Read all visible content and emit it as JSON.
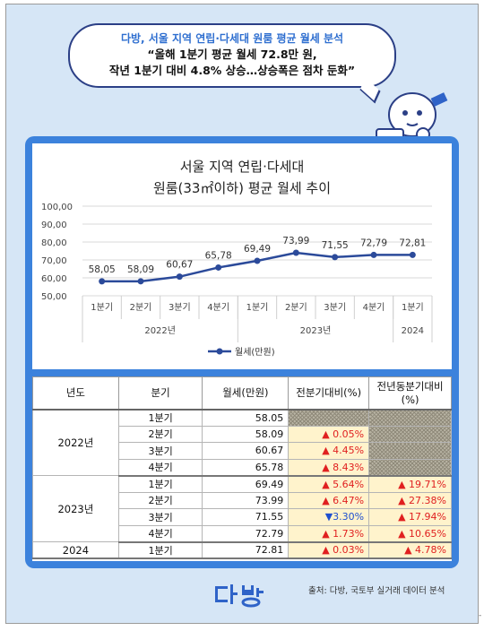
{
  "header": {
    "line1": "다방, 서울 지역 연립·다세대 원룸 평균 월세 분석",
    "line2": "“올해 1분기 평균 월세 72.8만 원,",
    "line3": "작년 1분기 대비 4.8% 상승…상승폭은 점차 둔화”"
  },
  "colors": {
    "accent": "#3c82dc",
    "line": "#2b4a9a",
    "highlight": "#fff3cc",
    "up": "#e02020",
    "down": "#1f4fcf"
  },
  "chart_data": {
    "type": "line",
    "title_line1": "서울 지역 연립·다세대",
    "title_line2": "원룸(33㎡이하) 평균 월세 추이",
    "categories": [
      "1분기",
      "2분기",
      "3분기",
      "4분기",
      "1분기",
      "2분기",
      "3분기",
      "4분기",
      "1분기"
    ],
    "groups": [
      {
        "label": "2022년",
        "count": 4
      },
      {
        "label": "2023년",
        "count": 4
      },
      {
        "label": "2024",
        "count": 1
      }
    ],
    "series": [
      {
        "name": "월세(만원)",
        "values": [
          58.05,
          58.09,
          60.67,
          65.78,
          69.49,
          73.99,
          71.55,
          72.79,
          72.81
        ]
      }
    ],
    "data_labels": [
      "58,05",
      "58,09",
      "60,67",
      "65,78",
      "69,49",
      "73,99",
      "71,55",
      "72,79",
      "72,81"
    ],
    "yticks": [
      "100,00",
      "90,00",
      "80,00",
      "70,00",
      "60,00",
      "50,00"
    ],
    "ylim": [
      50,
      100
    ],
    "grid": true,
    "legend": "bottom"
  },
  "table": {
    "headers": [
      "년도",
      "분기",
      "월세(만원)",
      "전분기대비(%)",
      "전년동분기대비(%)"
    ],
    "groups": [
      {
        "year": "2022년",
        "rows": [
          {
            "q": "1분기",
            "val": "58.05",
            "qoq": "",
            "yoy": "",
            "qoq_dir": "none",
            "yoy_dir": "none"
          },
          {
            "q": "2분기",
            "val": "58.09",
            "qoq": "▲ 0.05%",
            "yoy": "",
            "qoq_dir": "up",
            "yoy_dir": "none"
          },
          {
            "q": "3분기",
            "val": "60.67",
            "qoq": "▲ 4.45%",
            "yoy": "",
            "qoq_dir": "up",
            "yoy_dir": "none"
          },
          {
            "q": "4분기",
            "val": "65.78",
            "qoq": "▲ 8.43%",
            "yoy": "",
            "qoq_dir": "up",
            "yoy_dir": "none"
          }
        ]
      },
      {
        "year": "2023년",
        "rows": [
          {
            "q": "1분기",
            "val": "69.49",
            "qoq": "▲ 5.64%",
            "yoy": "▲ 19.71%",
            "qoq_dir": "up",
            "yoy_dir": "up"
          },
          {
            "q": "2분기",
            "val": "73.99",
            "qoq": "▲ 6.47%",
            "yoy": "▲ 27.38%",
            "qoq_dir": "up",
            "yoy_dir": "up"
          },
          {
            "q": "3분기",
            "val": "71.55",
            "qoq": "▼3.30%",
            "yoy": "▲ 17.94%",
            "qoq_dir": "down",
            "yoy_dir": "up"
          },
          {
            "q": "4분기",
            "val": "72.79",
            "qoq": "▲ 1.73%",
            "yoy": "▲ 10.65%",
            "qoq_dir": "up",
            "yoy_dir": "up"
          }
        ]
      },
      {
        "year": "2024",
        "rows": [
          {
            "q": "1분기",
            "val": "72.81",
            "qoq": "▲ 0.03%",
            "yoy": "▲ 4.78%",
            "qoq_dir": "up",
            "yoy_dir": "up"
          }
        ]
      }
    ]
  },
  "footer": {
    "logo": "다방",
    "source": "출처: 다방, 국토부 실거래 데이터 분석",
    "corner_mark": "-"
  }
}
